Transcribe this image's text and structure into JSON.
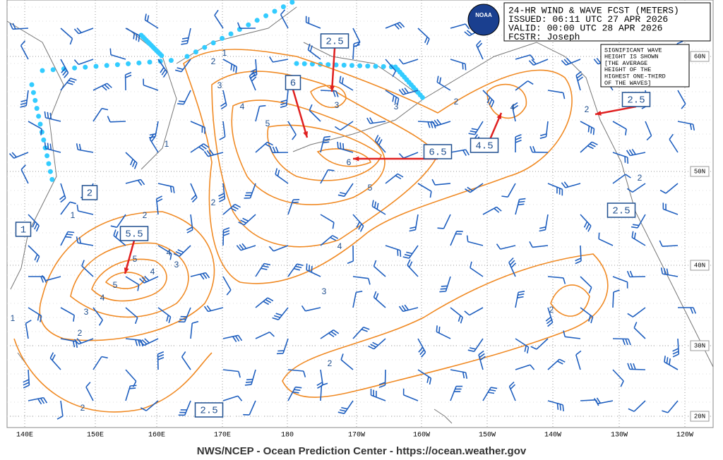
{
  "header": {
    "lines": [
      "24-HR WIND & WAVE FCST (METERS)",
      "ISSUED: 06:11 UTC 27 APR 2026",
      "VALID:  00:00 UTC 28 APR 2026",
      "FCSTR:  Joseph"
    ],
    "logo": "NOAA"
  },
  "note": [
    "SIGNIFICANT WAVE",
    "HEIGHT IS SHOWN",
    "[THE AVERAGE",
    "HEIGHT OF THE",
    "HIGHEST ONE-THIRD",
    "OF THE WAVES]"
  ],
  "longitudes": [
    "140E",
    "150E",
    "160E",
    "170E",
    "180",
    "170W",
    "160W",
    "150W",
    "140W",
    "130W",
    "120W"
  ],
  "latitudes": [
    "60N",
    "50N",
    "40N",
    "30N",
    "20N"
  ],
  "boxed_labels": [
    2.5,
    6,
    6.5,
    4.5,
    2.5,
    2,
    1,
    5.5,
    2.5,
    2.5
  ],
  "contour_labels": [
    1,
    2,
    3,
    4,
    5,
    3,
    3,
    2,
    4,
    2,
    1,
    1,
    2,
    2,
    5,
    6,
    2,
    4,
    3,
    5,
    4,
    3,
    5,
    4,
    3,
    2,
    1,
    2,
    2,
    2,
    4
  ],
  "footer": "NWS/NCEP - Ocean Prediction Center - https://ocean.weather.gov"
}
